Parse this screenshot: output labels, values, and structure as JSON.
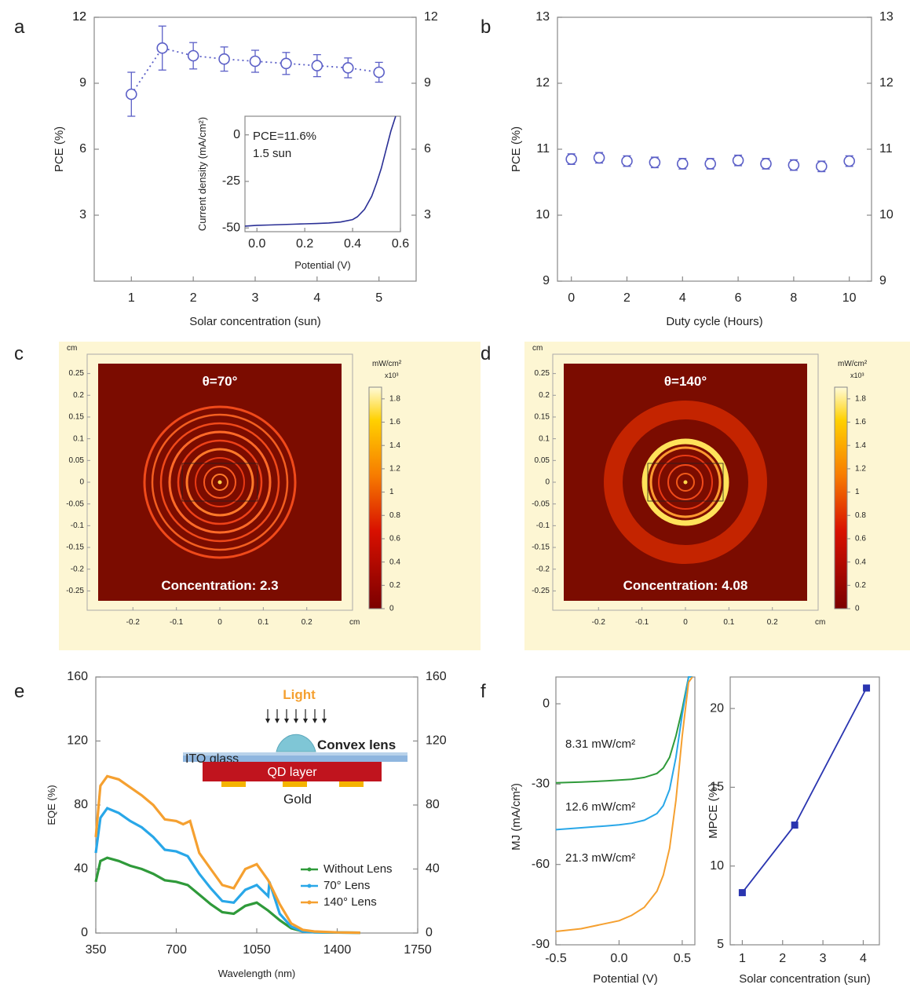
{
  "panel_letters": {
    "a": "a",
    "b": "b",
    "c": "c",
    "d": "d",
    "e": "e",
    "f": "f"
  },
  "chart_data": [
    {
      "id": "a",
      "type": "scatter",
      "xlabel": "Solar concentration (sun)",
      "ylabel": "PCE (%)",
      "xlim": [
        0.4,
        5.6
      ],
      "ylim": [
        0,
        12
      ],
      "xticks": [
        1,
        2,
        3,
        4,
        5
      ],
      "yticks": [
        3,
        6,
        9,
        12
      ],
      "yticks_right": [
        3,
        6,
        9,
        12
      ],
      "color": "#5b5fc7",
      "line_style": "dotted",
      "markers": "open-circle",
      "error_bars": true,
      "x": [
        1,
        1.5,
        2,
        2.5,
        3,
        3.5,
        4,
        4.5,
        5
      ],
      "y": [
        8.5,
        10.6,
        10.25,
        10.1,
        10.0,
        9.9,
        9.8,
        9.7,
        9.5
      ],
      "err": [
        1.0,
        1.0,
        0.6,
        0.55,
        0.5,
        0.5,
        0.5,
        0.45,
        0.45
      ],
      "inset": {
        "type": "line",
        "xlabel": "Potential (V)",
        "ylabel": "Current density (mA/cm²)",
        "xlim": [
          -0.05,
          0.6
        ],
        "ylim": [
          -52,
          10
        ],
        "xticks": [
          "0.0",
          "0.2",
          "0.4",
          "0.6"
        ],
        "xtick_values": [
          0,
          0.2,
          0.4,
          0.6
        ],
        "yticks": [
          "0",
          "-25",
          "-50"
        ],
        "ytick_values": [
          0,
          -25,
          -50
        ],
        "annotation_line1": "PCE=11.6%",
        "annotation_line2": "1.5 sun",
        "color": "#2a2f95",
        "x": [
          -0.05,
          0.0,
          0.05,
          0.1,
          0.15,
          0.2,
          0.25,
          0.3,
          0.35,
          0.4,
          0.42,
          0.45,
          0.48,
          0.5,
          0.52,
          0.54,
          0.56,
          0.58
        ],
        "y": [
          -49,
          -48.6,
          -48.4,
          -48.2,
          -48.0,
          -47.8,
          -47.6,
          -47.3,
          -46.8,
          -45.5,
          -44,
          -40,
          -33,
          -26,
          -18,
          -8,
          2,
          10
        ]
      }
    },
    {
      "id": "b",
      "type": "scatter",
      "xlabel": "Duty cycle (Hours)",
      "ylabel": "PCE (%)",
      "xlim": [
        -0.5,
        10.8
      ],
      "ylim": [
        9,
        13
      ],
      "xticks": [
        0,
        2,
        4,
        6,
        8,
        10
      ],
      "yticks": [
        9,
        10,
        11,
        12,
        13
      ],
      "yticks_right": [
        9,
        10,
        11,
        12,
        13
      ],
      "color": "#5b5fc7",
      "markers": "open-circle",
      "error_bars": true,
      "x": [
        0,
        1,
        2,
        3,
        4,
        5,
        6,
        7,
        8,
        9,
        10
      ],
      "y": [
        10.85,
        10.87,
        10.82,
        10.8,
        10.78,
        10.78,
        10.83,
        10.78,
        10.76,
        10.74,
        10.82
      ],
      "err": [
        0.08,
        0.08,
        0.08,
        0.08,
        0.08,
        0.08,
        0.08,
        0.08,
        0.08,
        0.08,
        0.08
      ]
    },
    {
      "id": "c",
      "type": "heatmap",
      "unit_label": "cm",
      "title": "θ=70°",
      "annotation": "Concentration: 2.3",
      "colorbar_title": "mW/cm²",
      "colorbar_exponent": "x10³",
      "xticks": [
        "-0.2",
        "-0.1",
        "0",
        "0.1",
        "0.2"
      ],
      "xtick_values": [
        -0.2,
        -0.1,
        0,
        0.1,
        0.2
      ],
      "yticks": [
        "0.25",
        "0.2",
        "0.15",
        "0.1",
        "0.05",
        "0",
        "-0.05",
        "-0.1",
        "-0.15",
        "-0.2",
        "-0.25"
      ],
      "ytick_values": [
        0.25,
        0.2,
        0.15,
        0.1,
        0.05,
        0,
        -0.05,
        -0.1,
        -0.15,
        -0.2,
        -0.25
      ],
      "colorbar_ticks": [
        "1.8",
        "1.6",
        "1.4",
        "1.2",
        "1",
        "0.8",
        "0.6",
        "0.4",
        "0.2",
        "0"
      ],
      "colorbar_tick_values": [
        1.8,
        1.6,
        1.4,
        1.2,
        1,
        0.8,
        0.6,
        0.4,
        0.2,
        0
      ],
      "xlim": [
        -0.28,
        0.28
      ],
      "ylim": [
        -0.28,
        0.28
      ]
    },
    {
      "id": "d",
      "type": "heatmap",
      "unit_label": "cm",
      "title": "θ=140°",
      "annotation": "Concentration: 4.08",
      "colorbar_title": "mW/cm²",
      "colorbar_exponent": "x10³",
      "xticks": [
        "-0.2",
        "-0.1",
        "0",
        "0.1",
        "0.2"
      ],
      "xtick_values": [
        -0.2,
        -0.1,
        0,
        0.1,
        0.2
      ],
      "yticks": [
        "0.25",
        "0.2",
        "0.15",
        "0.1",
        "0.05",
        "0",
        "-0.05",
        "-0.1",
        "-0.15",
        "-0.2",
        "-0.25"
      ],
      "ytick_values": [
        0.25,
        0.2,
        0.15,
        0.1,
        0.05,
        0,
        -0.05,
        -0.1,
        -0.15,
        -0.2,
        -0.25
      ],
      "colorbar_ticks": [
        "1.8",
        "1.6",
        "1.4",
        "1.2",
        "1",
        "0.8",
        "0.6",
        "0.4",
        "0.2",
        "0"
      ],
      "colorbar_tick_values": [
        1.8,
        1.6,
        1.4,
        1.2,
        1,
        0.8,
        0.6,
        0.4,
        0.2,
        0
      ],
      "xlim": [
        -0.28,
        0.28
      ],
      "ylim": [
        -0.28,
        0.28
      ]
    },
    {
      "id": "e",
      "type": "line",
      "xlabel": "Wavelength (nm)",
      "ylabel": "EQE (%)",
      "xlim": [
        350,
        1750
      ],
      "ylim": [
        0,
        160
      ],
      "xticks": [
        350,
        700,
        1050,
        1400,
        1750
      ],
      "yticks": [
        0,
        40,
        80,
        120,
        160
      ],
      "yticks_right": [
        0,
        40,
        80,
        120,
        160
      ],
      "legend_placement": "lower-right",
      "series": [
        {
          "name": "Without  Lens",
          "color": "#2f9a3a",
          "x": [
            350,
            370,
            400,
            450,
            500,
            550,
            600,
            650,
            700,
            750,
            800,
            850,
            900,
            950,
            1000,
            1050,
            1100,
            1150,
            1200,
            1250,
            1300,
            1400,
            1500
          ],
          "y": [
            32,
            45,
            47,
            45,
            42,
            40,
            37,
            33,
            32,
            30,
            24,
            18,
            13,
            12,
            17,
            19,
            14,
            8,
            3,
            1,
            0.5,
            0.3,
            0.2
          ]
        },
        {
          "name": "70° Lens",
          "color": "#29a7e8",
          "x": [
            350,
            370,
            400,
            450,
            500,
            550,
            600,
            650,
            700,
            750,
            800,
            850,
            900,
            950,
            1000,
            1050,
            1100,
            1105,
            1150,
            1200,
            1250,
            1300,
            1400,
            1500
          ],
          "y": [
            50,
            72,
            78,
            75,
            70,
            66,
            60,
            52,
            51,
            48,
            37,
            28,
            20,
            19,
            27,
            30,
            23,
            32,
            12,
            4,
            1,
            0.5,
            0.3,
            0.2
          ]
        },
        {
          "name": "140° Lens",
          "color": "#f5a030",
          "x": [
            350,
            370,
            400,
            450,
            500,
            550,
            600,
            650,
            700,
            730,
            760,
            800,
            850,
            900,
            950,
            1000,
            1050,
            1100,
            1150,
            1200,
            1250,
            1300,
            1400,
            1500
          ],
          "y": [
            60,
            92,
            98,
            96,
            91,
            86,
            80,
            71,
            70,
            68,
            70,
            50,
            40,
            30,
            28,
            40,
            43,
            33,
            18,
            6,
            2,
            1,
            0.4,
            0.2
          ]
        }
      ],
      "inset": {
        "light_label": "Light",
        "lens_label": "Convex lens",
        "ito_label": "ITO glass",
        "qd_label": "QD layer",
        "gold_label": "Gold"
      }
    },
    {
      "id": "f1",
      "type": "line",
      "xlabel": "Potential (V)",
      "ylabel": "MJ (mA/cm²)",
      "xlim": [
        -0.5,
        0.6
      ],
      "ylim": [
        -90,
        10
      ],
      "xticks": [
        "-0.5",
        "0.0",
        "0.5"
      ],
      "xtick_values": [
        -0.5,
        0,
        0.5
      ],
      "yticks": [
        "0",
        "-30",
        "-60",
        "-90"
      ],
      "ytick_values": [
        0,
        -30,
        -60,
        -90
      ],
      "series": [
        {
          "name": "8.31 mW/cm²",
          "color": "#2f9a3a",
          "x": [
            -0.5,
            -0.3,
            -0.1,
            0.0,
            0.1,
            0.2,
            0.3,
            0.35,
            0.4,
            0.45,
            0.5,
            0.55,
            0.58
          ],
          "y": [
            -29.5,
            -29.2,
            -28.8,
            -28.5,
            -28.2,
            -27.5,
            -26,
            -24,
            -20,
            -12,
            -2,
            10,
            14
          ]
        },
        {
          "name": "12.6 mW/cm²",
          "color": "#29a7e8",
          "x": [
            -0.5,
            -0.3,
            -0.1,
            0.0,
            0.1,
            0.2,
            0.3,
            0.35,
            0.4,
            0.45,
            0.5,
            0.55,
            0.58
          ],
          "y": [
            -47,
            -46.3,
            -45.6,
            -45.2,
            -44.6,
            -43.5,
            -41,
            -38,
            -32,
            -20,
            -4,
            10,
            14
          ]
        },
        {
          "name": "21.3 mW/cm²",
          "color": "#f5a030",
          "x": [
            -0.5,
            -0.3,
            -0.1,
            0.0,
            0.1,
            0.2,
            0.3,
            0.35,
            0.4,
            0.45,
            0.5,
            0.55,
            0.58
          ],
          "y": [
            -85,
            -84,
            -82,
            -81,
            -79,
            -76,
            -70,
            -64,
            -54,
            -36,
            -12,
            8,
            14
          ]
        }
      ]
    },
    {
      "id": "f2",
      "type": "line",
      "xlabel": "Solar concentration (sun)",
      "ylabel": "MPCE (%)",
      "xlim": [
        0.7,
        4.4
      ],
      "ylim": [
        5,
        22
      ],
      "xticks": [
        1,
        2,
        3,
        4
      ],
      "yticks": [
        5,
        10,
        15,
        20
      ],
      "color": "#2a35b0",
      "markers": "filled-square",
      "x": [
        1,
        2.3,
        4.08
      ],
      "y": [
        8.31,
        12.6,
        21.3
      ]
    }
  ]
}
